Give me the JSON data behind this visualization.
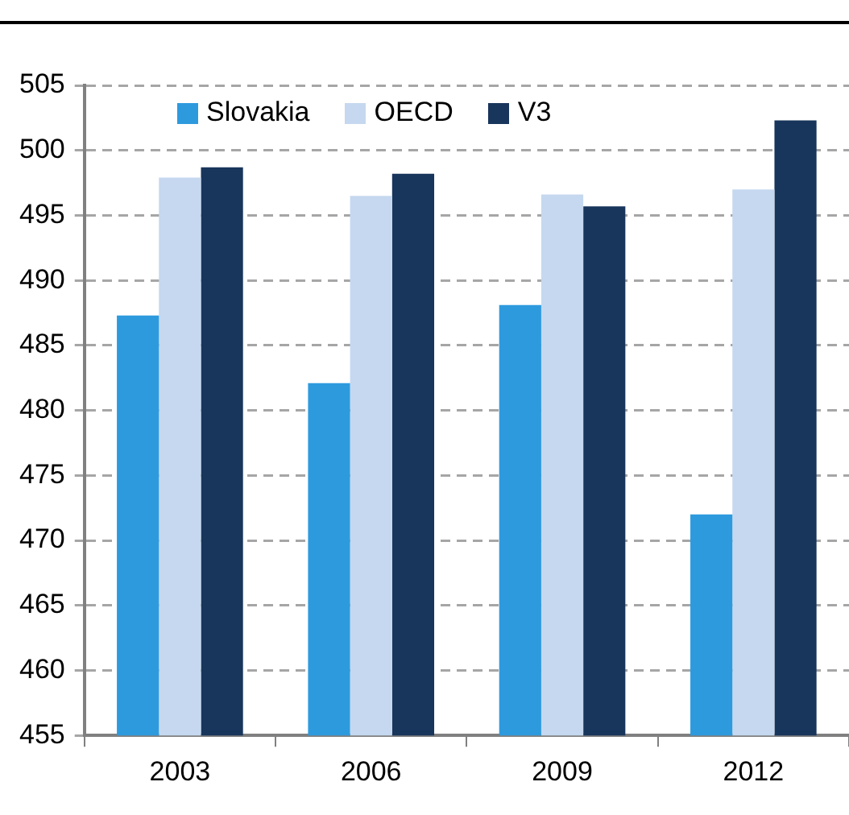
{
  "chart_data": {
    "type": "bar",
    "categories": [
      "2003",
      "2006",
      "2009",
      "2012"
    ],
    "series": [
      {
        "name": "Slovakia",
        "color": "#2e9ade",
        "values": [
          487.3,
          482.1,
          488.1,
          472.0
        ]
      },
      {
        "name": "OECD",
        "color": "#c5d8ef",
        "values": [
          497.9,
          496.5,
          496.6,
          497.0
        ]
      },
      {
        "name": "V3",
        "color": "#18355b",
        "values": [
          498.7,
          498.2,
          495.7,
          502.3
        ]
      }
    ],
    "ylim": [
      455,
      505
    ],
    "yticks": [
      455,
      460,
      465,
      470,
      475,
      480,
      485,
      490,
      495,
      500,
      505
    ],
    "grid": "y",
    "legend": "top left"
  }
}
